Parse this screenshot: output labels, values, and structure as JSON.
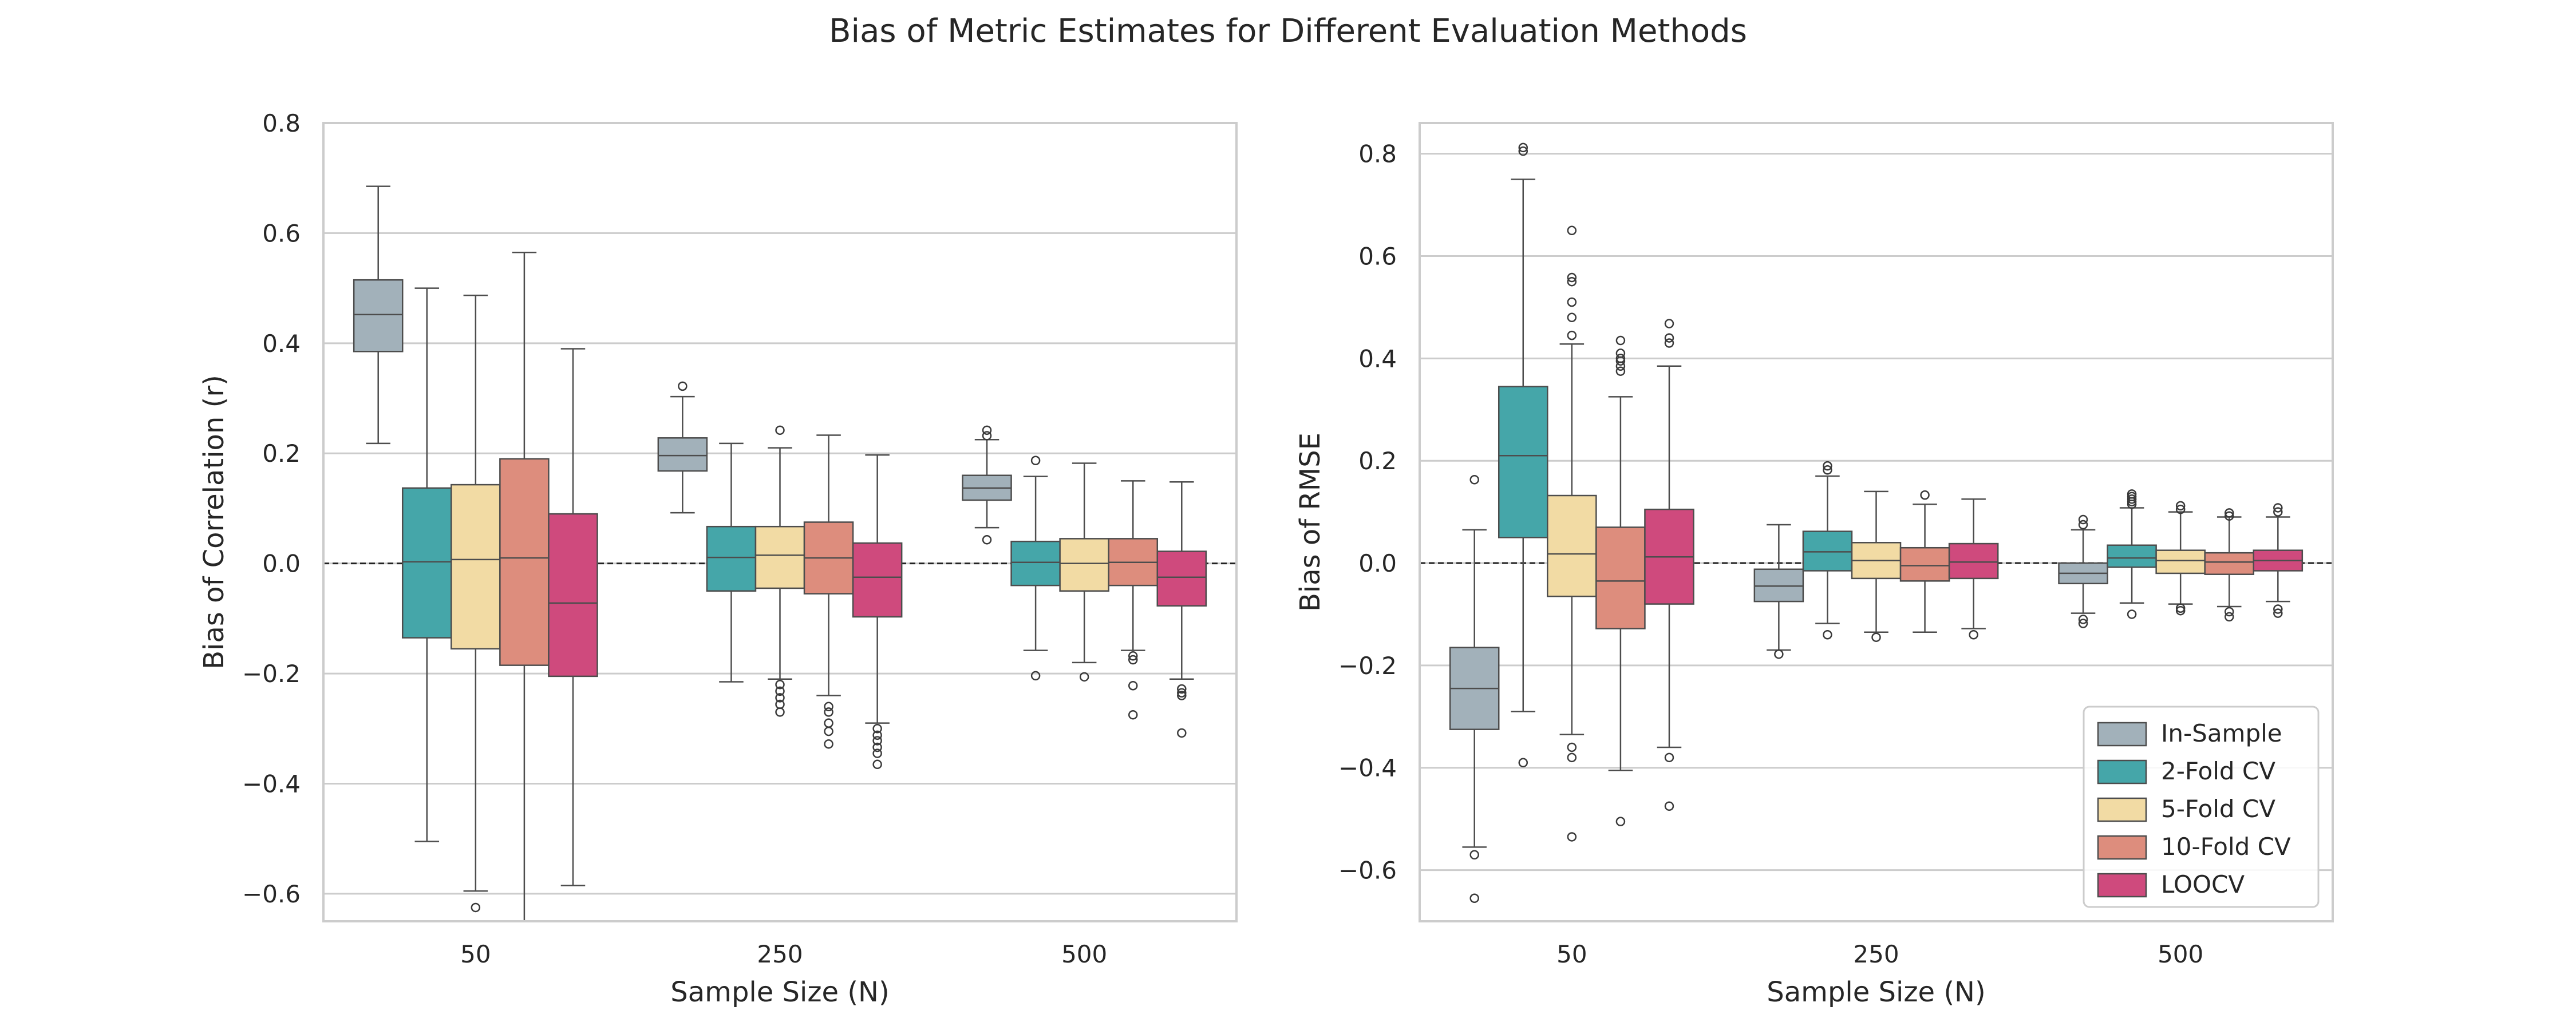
{
  "figure": {
    "title": "Bias of Metric Estimates for Different Evaluation Methods"
  },
  "colors": {
    "In-Sample": "#a2b1ba",
    "2-Fold CV": "#45a6a9",
    "5-Fold CV": "#f2dba4",
    "10-Fold CV": "#dd8d7d",
    "LOOCV": "#cf4a7d",
    "grid": "#cccccc",
    "frame": "#cccccc",
    "whisker": "#4d4d4d"
  },
  "chart_data": [
    {
      "type": "box",
      "title": "",
      "xlabel": "Sample Size (N)",
      "ylabel": "Bias of Correlation (r)",
      "categories": [
        "50",
        "250",
        "500"
      ],
      "ylim": [
        -0.65,
        0.8
      ],
      "yticks": [
        -0.6,
        -0.4,
        -0.2,
        0.0,
        0.2,
        0.4,
        0.6,
        0.8
      ],
      "ytick_labels": [
        "−0.6",
        "−0.4",
        "−0.2",
        "0.0",
        "0.2",
        "0.4",
        "0.6",
        "0.8"
      ],
      "grid": true,
      "reference_line": 0,
      "legend": false,
      "series": [
        {
          "name": "In-Sample",
          "boxes": [
            {
              "q1": 0.385,
              "median": 0.452,
              "q3": 0.515,
              "wlo": 0.218,
              "whi": 0.685,
              "outliers": []
            },
            {
              "q1": 0.168,
              "median": 0.196,
              "q3": 0.228,
              "wlo": 0.092,
              "whi": 0.303,
              "outliers": [
                0.322
              ]
            },
            {
              "q1": 0.115,
              "median": 0.137,
              "q3": 0.16,
              "wlo": 0.065,
              "whi": 0.225,
              "outliers": [
                0.232,
                0.242,
                0.043
              ]
            }
          ]
        },
        {
          "name": "2-Fold CV",
          "boxes": [
            {
              "q1": -0.135,
              "median": 0.003,
              "q3": 0.137,
              "wlo": -0.505,
              "whi": 0.5,
              "outliers": []
            },
            {
              "q1": -0.05,
              "median": 0.011,
              "q3": 0.067,
              "wlo": -0.215,
              "whi": 0.218,
              "outliers": []
            },
            {
              "q1": -0.04,
              "median": 0.002,
              "q3": 0.04,
              "wlo": -0.158,
              "whi": 0.158,
              "outliers": [
                0.187,
                -0.204
              ]
            }
          ]
        },
        {
          "name": "5-Fold CV",
          "boxes": [
            {
              "q1": -0.155,
              "median": 0.007,
              "q3": 0.143,
              "wlo": -0.595,
              "whi": 0.487,
              "outliers": [
                -0.625
              ]
            },
            {
              "q1": -0.045,
              "median": 0.015,
              "q3": 0.067,
              "wlo": -0.21,
              "whi": 0.21,
              "outliers": [
                0.242,
                -0.22,
                -0.232,
                -0.244,
                -0.256,
                -0.27
              ]
            },
            {
              "q1": -0.05,
              "median": 0.0,
              "q3": 0.045,
              "wlo": -0.18,
              "whi": 0.182,
              "outliers": [
                -0.206
              ]
            }
          ]
        },
        {
          "name": "10-Fold CV",
          "boxes": [
            {
              "q1": -0.185,
              "median": 0.01,
              "q3": 0.19,
              "wlo": -0.65,
              "whi": 0.565,
              "outliers": []
            },
            {
              "q1": -0.055,
              "median": 0.01,
              "q3": 0.075,
              "wlo": -0.24,
              "whi": 0.233,
              "outliers": [
                -0.26,
                -0.27,
                -0.29,
                -0.305,
                -0.328
              ]
            },
            {
              "q1": -0.04,
              "median": 0.002,
              "q3": 0.045,
              "wlo": -0.158,
              "whi": 0.15,
              "outliers": [
                -0.168,
                -0.175,
                -0.222,
                -0.275
              ]
            }
          ]
        },
        {
          "name": "LOOCV",
          "boxes": [
            {
              "q1": -0.205,
              "median": -0.072,
              "q3": 0.09,
              "wlo": -0.585,
              "whi": 0.39,
              "outliers": []
            },
            {
              "q1": -0.097,
              "median": -0.025,
              "q3": 0.037,
              "wlo": -0.29,
              "whi": 0.197,
              "outliers": [
                -0.3,
                -0.312,
                -0.322,
                -0.334,
                -0.345,
                -0.365
              ]
            },
            {
              "q1": -0.077,
              "median": -0.025,
              "q3": 0.022,
              "wlo": -0.21,
              "whi": 0.148,
              "outliers": [
                -0.228,
                -0.235,
                -0.24,
                -0.308
              ]
            }
          ]
        }
      ]
    },
    {
      "type": "box",
      "title": "",
      "xlabel": "Sample Size (N)",
      "ylabel": "Bias of RMSE",
      "categories": [
        "50",
        "250",
        "500"
      ],
      "ylim": [
        -0.7,
        0.86
      ],
      "yticks": [
        -0.6,
        -0.4,
        -0.2,
        0.0,
        0.2,
        0.4,
        0.6,
        0.8
      ],
      "ytick_labels": [
        "−0.6",
        "−0.4",
        "−0.2",
        "0.0",
        "0.2",
        "0.4",
        "0.6",
        "0.8"
      ],
      "grid": true,
      "reference_line": 0,
      "legend": "lower-right",
      "series": [
        {
          "name": "In-Sample",
          "boxes": [
            {
              "q1": -0.325,
              "median": -0.245,
              "q3": -0.165,
              "wlo": -0.555,
              "whi": 0.065,
              "outliers": [
                0.163,
                -0.57,
                -0.655
              ]
            },
            {
              "q1": -0.075,
              "median": -0.045,
              "q3": -0.012,
              "wlo": -0.17,
              "whi": 0.075,
              "outliers": [
                -0.178
              ]
            },
            {
              "q1": -0.04,
              "median": -0.02,
              "q3": 0.0,
              "wlo": -0.098,
              "whi": 0.065,
              "outliers": [
                0.075,
                0.085,
                -0.11,
                -0.118
              ]
            }
          ]
        },
        {
          "name": "2-Fold CV",
          "boxes": [
            {
              "q1": 0.05,
              "median": 0.21,
              "q3": 0.345,
              "wlo": -0.29,
              "whi": 0.75,
              "outliers": [
                0.805,
                0.812,
                -0.39
              ]
            },
            {
              "q1": -0.015,
              "median": 0.022,
              "q3": 0.062,
              "wlo": -0.118,
              "whi": 0.17,
              "outliers": [
                0.182,
                0.19,
                -0.14
              ]
            },
            {
              "q1": -0.008,
              "median": 0.01,
              "q3": 0.035,
              "wlo": -0.078,
              "whi": 0.108,
              "outliers": [
                0.115,
                0.12,
                0.125,
                0.13,
                0.135,
                -0.1
              ]
            }
          ]
        },
        {
          "name": "5-Fold CV",
          "boxes": [
            {
              "q1": -0.065,
              "median": 0.018,
              "q3": 0.132,
              "wlo": -0.335,
              "whi": 0.428,
              "outliers": [
                0.445,
                0.48,
                0.51,
                0.55,
                0.558,
                0.65,
                -0.36,
                -0.38,
                -0.535
              ]
            },
            {
              "q1": -0.03,
              "median": 0.005,
              "q3": 0.04,
              "wlo": -0.135,
              "whi": 0.14,
              "outliers": [
                -0.145
              ]
            },
            {
              "q1": -0.02,
              "median": 0.005,
              "q3": 0.025,
              "wlo": -0.08,
              "whi": 0.1,
              "outliers": [
                0.105,
                0.112,
                -0.088,
                -0.093
              ]
            }
          ]
        },
        {
          "name": "10-Fold CV",
          "boxes": [
            {
              "q1": -0.128,
              "median": -0.035,
              "q3": 0.07,
              "wlo": -0.405,
              "whi": 0.325,
              "outliers": [
                0.375,
                0.385,
                0.395,
                0.4,
                0.41,
                0.435,
                -0.505
              ]
            },
            {
              "q1": -0.035,
              "median": -0.005,
              "q3": 0.03,
              "wlo": -0.135,
              "whi": 0.115,
              "outliers": [
                0.133
              ]
            },
            {
              "q1": -0.022,
              "median": 0.002,
              "q3": 0.02,
              "wlo": -0.085,
              "whi": 0.09,
              "outliers": [
                0.092,
                0.098,
                -0.095,
                -0.105
              ]
            }
          ]
        },
        {
          "name": "LOOCV",
          "boxes": [
            {
              "q1": -0.08,
              "median": 0.012,
              "q3": 0.105,
              "wlo": -0.36,
              "whi": 0.385,
              "outliers": [
                0.43,
                0.44,
                0.468,
                -0.38,
                -0.475
              ]
            },
            {
              "q1": -0.03,
              "median": 0.002,
              "q3": 0.038,
              "wlo": -0.128,
              "whi": 0.125,
              "outliers": [
                -0.14
              ]
            },
            {
              "q1": -0.015,
              "median": 0.005,
              "q3": 0.025,
              "wlo": -0.075,
              "whi": 0.09,
              "outliers": [
                0.1,
                0.108,
                -0.09,
                -0.098
              ]
            }
          ]
        }
      ]
    }
  ]
}
